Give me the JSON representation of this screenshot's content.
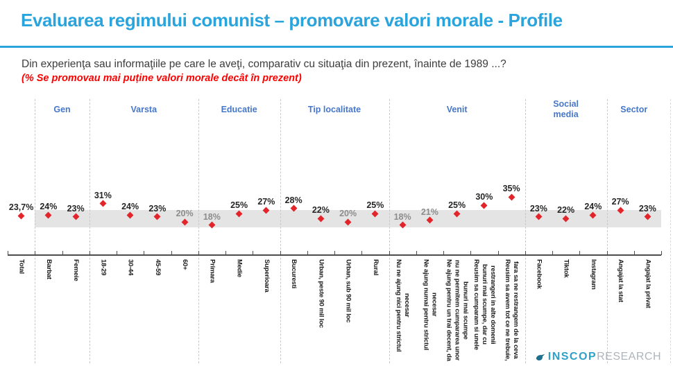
{
  "header": {
    "title": "Evaluarea regimului comunist – promovare valori morale - Profile"
  },
  "question": "Din experienţa sau informaţiile pe care le aveţi, comparativ cu situaţia din prezent, înainte de 1989 ...?",
  "question_note": "(% Se promovau mai puține valori morale decât în prezent)",
  "logo": {
    "brand": "INSCOP",
    "suffix": "RESEARCH"
  },
  "colors": {
    "title_blue": "#29A4DC",
    "rule_blue": "#29A4DC",
    "group_label_blue": "#4677C8",
    "marker_red": "#E2242B",
    "note_red": "#FF0000",
    "band_gray": "#E4E4E4",
    "separator_gray": "#C9C9C9",
    "axis_gray": "#4D4D4D",
    "muted_label_gray": "#8C8C8C",
    "value_label_dark": "#262626",
    "category_label_dark": "#1A1A1A",
    "logo_teal": "#2FA0C8",
    "logo_gray": "#ADB4BA",
    "logo_bird_teal": "#1E6F8E"
  },
  "chart_data": {
    "type": "scatter",
    "marker": "diamond",
    "unit": "%",
    "y_axis_visible": false,
    "reference_band": {
      "approx_low_pct": 17,
      "approx_high_pct": 27
    },
    "groups": [
      {
        "label": "",
        "categories": [
          {
            "label": "Total",
            "value": 23.7,
            "display": "23,7%",
            "muted": false
          }
        ]
      },
      {
        "label": "Gen",
        "categories": [
          {
            "label": "Barbat",
            "value": 24,
            "display": "24%",
            "muted": false
          },
          {
            "label": "Femeie",
            "value": 23,
            "display": "23%",
            "muted": false
          }
        ]
      },
      {
        "label": "Varsta",
        "categories": [
          {
            "label": "18-29",
            "value": 31,
            "display": "31%",
            "muted": false
          },
          {
            "label": "30-44",
            "value": 24,
            "display": "24%",
            "muted": false
          },
          {
            "label": "45-59",
            "value": 23,
            "display": "23%",
            "muted": false
          },
          {
            "label": "60+",
            "value": 20,
            "display": "20%",
            "muted": true
          }
        ]
      },
      {
        "label": "Educatie",
        "categories": [
          {
            "label": "Primara",
            "value": 18,
            "display": "18%",
            "muted": true
          },
          {
            "label": "Medie",
            "value": 25,
            "display": "25%",
            "muted": false
          },
          {
            "label": "Superioara",
            "value": 27,
            "display": "27%",
            "muted": false
          }
        ]
      },
      {
        "label": "Tip localitate",
        "categories": [
          {
            "label": "Bucuresti",
            "value": 28,
            "display": "28%",
            "muted": false
          },
          {
            "label": "Urban, peste 90 mil loc",
            "value": 22,
            "display": "22%",
            "muted": false
          },
          {
            "label": "Urban, sub 90 mil loc",
            "value": 20,
            "display": "20%",
            "muted": true
          },
          {
            "label": "Rural",
            "value": 25,
            "display": "25%",
            "muted": false
          }
        ]
      },
      {
        "label": "Venit",
        "categories": [
          {
            "label": "Nu ne ajung nici pentru strictul\nnecesar",
            "value": 18,
            "display": "18%",
            "muted": true
          },
          {
            "label": "Ne ajung numai pentru strictul\nnecesar",
            "value": 21,
            "display": "21%",
            "muted": true
          },
          {
            "label": "Ne ajung pentru un trai decent, da\nnu ne permitem cumpararea unor\nbunuri mai scumpe",
            "value": 25,
            "display": "25%",
            "muted": false
          },
          {
            "label": "Reusim sa cumparam si unele\nbunuri mai scumpe, dar cu\nrestrangeri in alte domenii",
            "value": 30,
            "display": "30%",
            "muted": false
          },
          {
            "label": "Reusim sa avem tot ce ne trebuie,\nfara sa ne restrangem de la ceva",
            "value": 35,
            "display": "35%",
            "muted": false
          }
        ]
      },
      {
        "label": "Social\nmedia",
        "categories": [
          {
            "label": "Facebook",
            "value": 23,
            "display": "23%",
            "muted": false
          },
          {
            "label": "Tiktok",
            "value": 22,
            "display": "22%",
            "muted": false
          },
          {
            "label": "Instagram",
            "value": 24,
            "display": "24%",
            "muted": false
          }
        ]
      },
      {
        "label": "Sector",
        "categories": [
          {
            "label": "Angajat la stat",
            "value": 27,
            "display": "27%",
            "muted": false
          },
          {
            "label": "Angajat la privat",
            "value": 23,
            "display": "23%",
            "muted": false
          }
        ]
      }
    ]
  }
}
